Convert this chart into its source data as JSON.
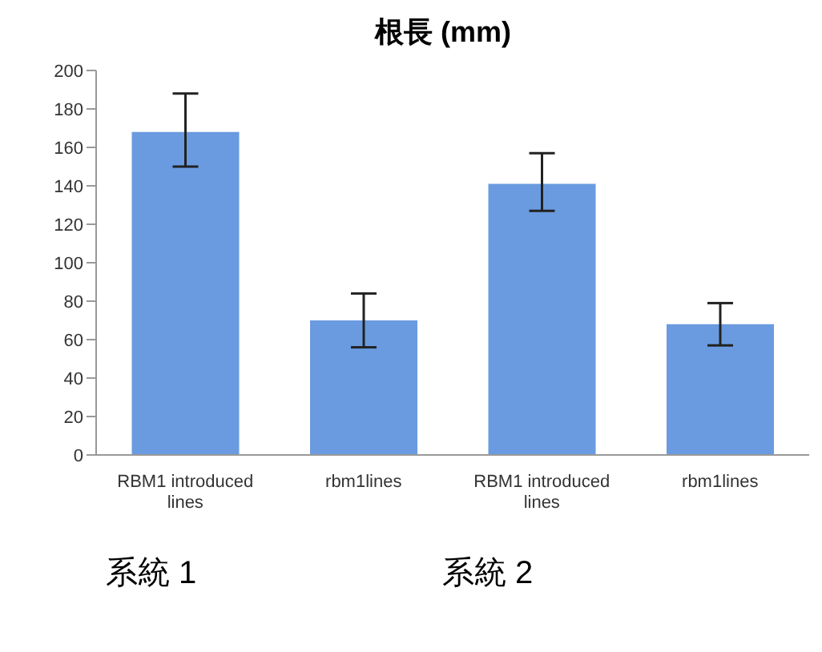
{
  "chart_data": {
    "type": "bar",
    "title": "根長 (mm)",
    "categories": [
      "RBM1 introduced lines",
      "rbm1lines",
      "RBM1 introduced lines",
      "rbm1lines"
    ],
    "values": [
      168,
      70,
      141,
      68
    ],
    "errors": [
      [
        150,
        188
      ],
      [
        56,
        84
      ],
      [
        127,
        157
      ],
      [
        57,
        79
      ]
    ],
    "color": "#6a9be0",
    "ylim": [
      0,
      200
    ],
    "yticks": [
      0,
      20,
      40,
      60,
      80,
      100,
      120,
      140,
      160,
      180,
      200
    ],
    "grid": false,
    "legend": false,
    "annotations": [
      "系統 1",
      "系統 2"
    ]
  }
}
